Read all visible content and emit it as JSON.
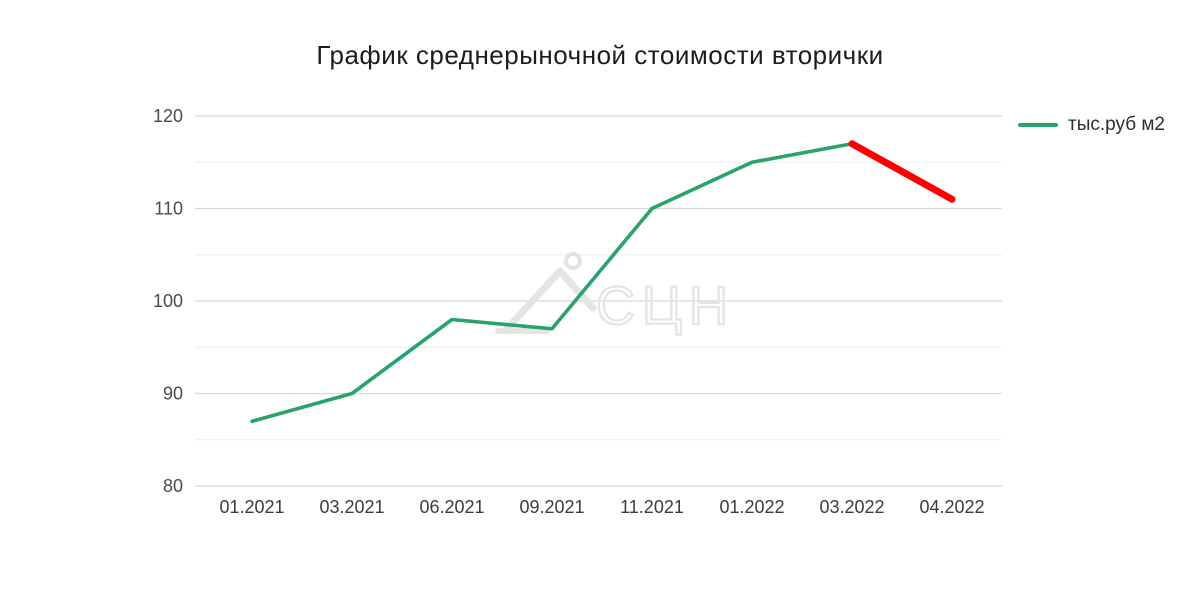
{
  "chart": {
    "title": "График среднерыночной стоимости вторички",
    "legend": {
      "label": "тыс.руб м2",
      "swatch_color": "#29a36c"
    },
    "watermark": {
      "text": "СЦН",
      "icon": "house-roof-logo-icon",
      "color": "#e4e4e4"
    }
  },
  "chart_data": {
    "type": "line",
    "title": "График среднерыночной стоимости вторички",
    "categories": [
      "01.2021",
      "03.2021",
      "06.2021",
      "09.2021",
      "11.2021",
      "01.2022",
      "03.2022",
      "04.2022"
    ],
    "series": [
      {
        "name": "тыс.руб м2",
        "values": [
          87,
          90,
          98,
          97,
          110,
          115,
          117,
          111
        ],
        "segments": [
          {
            "from": 0,
            "to": 6,
            "color": "#29a36c",
            "width": 3.6
          },
          {
            "from": 6,
            "to": 7,
            "color": "#ff0000",
            "width": 7
          }
        ]
      }
    ],
    "xlabel": "",
    "ylabel": "",
    "ylim": [
      80,
      120
    ],
    "yticks_major": [
      80,
      90,
      100,
      110,
      120
    ],
    "yticks_minor": [
      85,
      95,
      105,
      115
    ],
    "grid": true,
    "legend_position": "top-right",
    "colors": {
      "grid_major": "#d8d8d8",
      "grid_minor": "#ebebeb",
      "ytick_label": "#4a4a4a",
      "xtick_label": "#3c3c3c"
    }
  }
}
